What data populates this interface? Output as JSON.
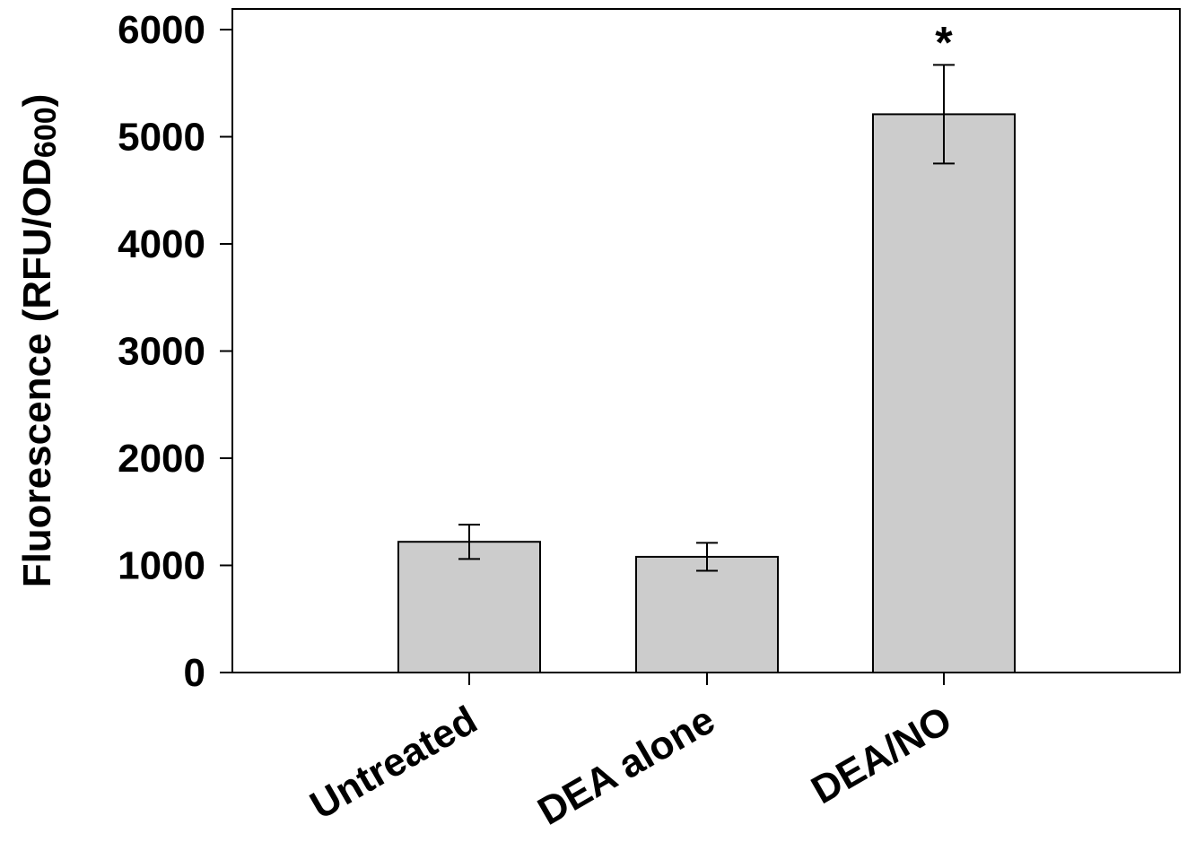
{
  "chart_data": {
    "type": "bar",
    "categories": [
      "Untreated",
      "DEA alone",
      "DEA/NO"
    ],
    "values": [
      1220,
      1080,
      5210
    ],
    "errors": [
      160,
      130,
      460
    ],
    "annotations": [
      "",
      "",
      "*"
    ],
    "ylabel": "Fluorescence (RFU/OD600)",
    "ylabel_main": "Fluorescence (RFU/OD",
    "ylabel_sub": "600",
    "ylabel_close": ")",
    "xlabel": "",
    "title": "",
    "ylim": [
      0,
      6000
    ],
    "yticks": [
      0,
      1000,
      2000,
      3000,
      4000,
      5000,
      6000
    ],
    "grid": false,
    "bar_color": "#cccccc",
    "edge_color": "#000000"
  }
}
